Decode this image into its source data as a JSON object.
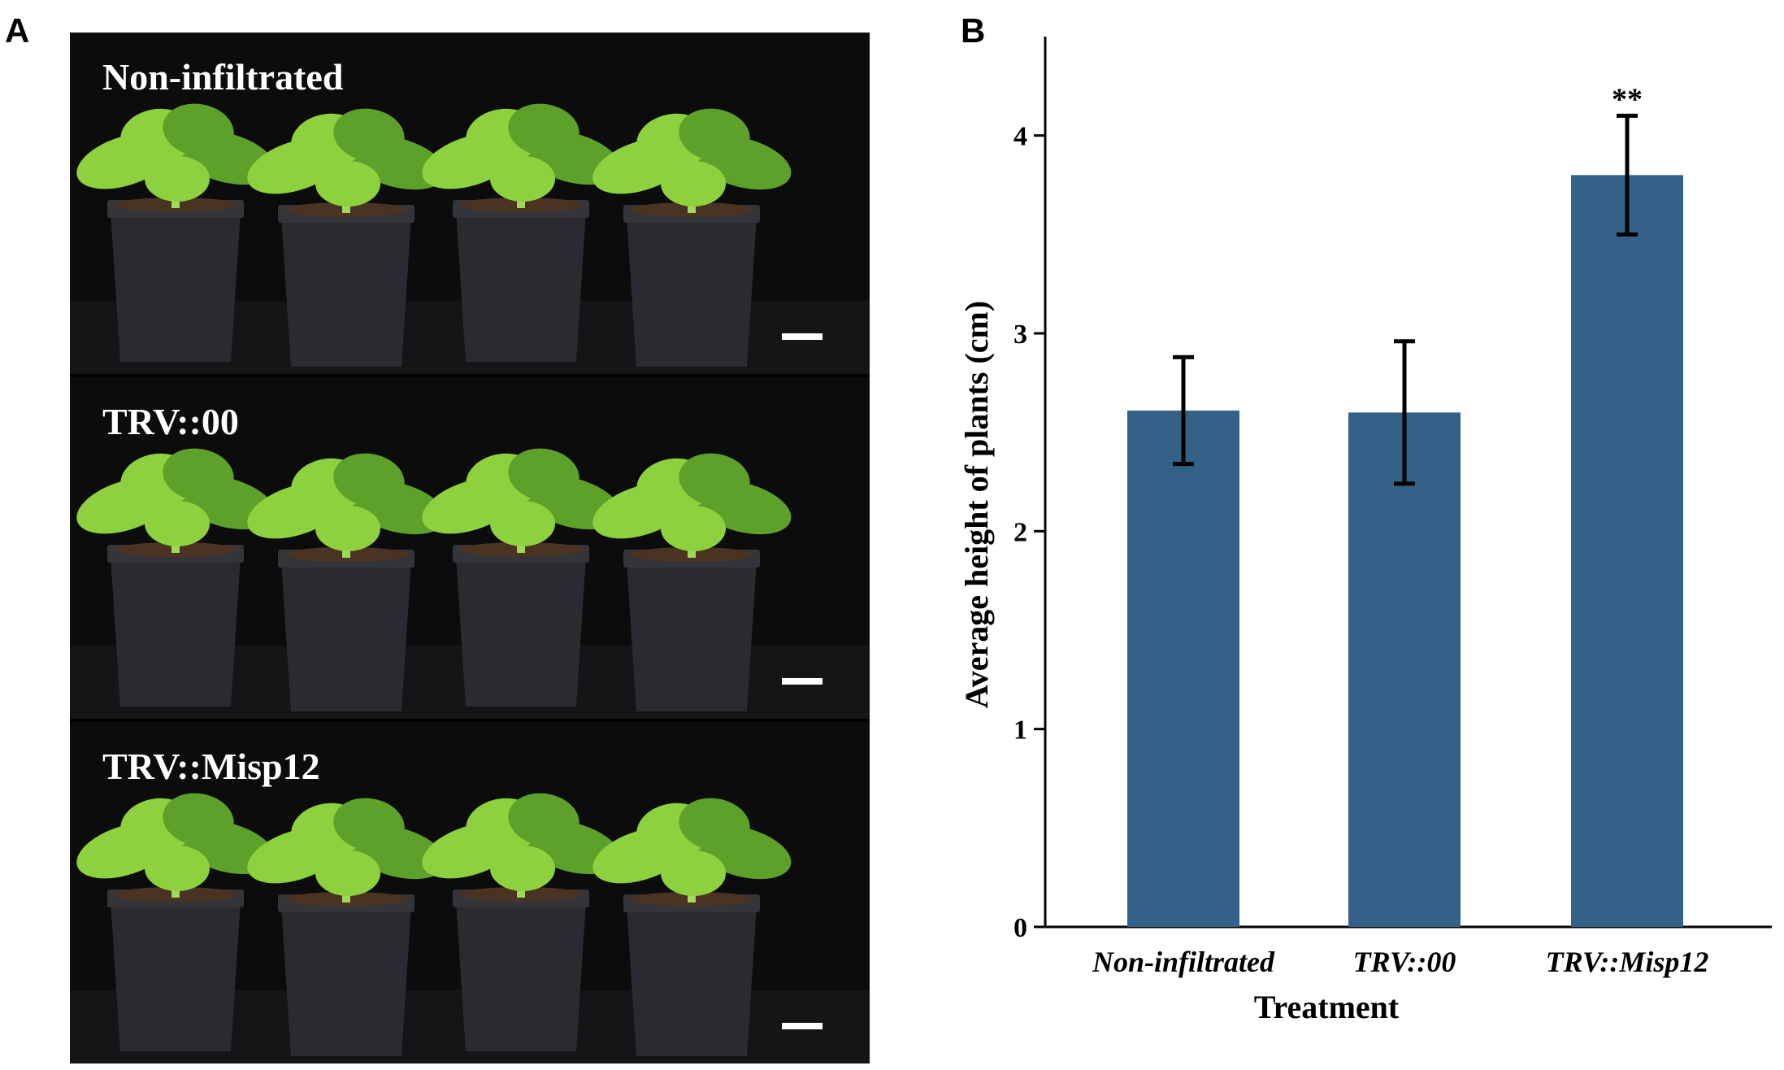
{
  "panels": {
    "a_letter": "A",
    "b_letter": "B"
  },
  "photos": [
    {
      "label": "Non-infiltrated"
    },
    {
      "label": "TRV::00"
    },
    {
      "label": "TRV::Misp12"
    }
  ],
  "colors": {
    "bar": "#346188",
    "leaf": "#8ed13f",
    "leaf_dark": "#5ea12a",
    "pot": "#2a2b30",
    "soil": "#4a3323",
    "background": "#0c0c0d"
  },
  "chart_data": {
    "type": "bar",
    "categories": [
      "Non-infiltrated",
      "TRV::00",
      "TRV::Misp12"
    ],
    "values": [
      2.61,
      2.6,
      3.8
    ],
    "errors": [
      0.27,
      0.36,
      0.3
    ],
    "annotations": [
      "",
      "",
      "**"
    ],
    "xlabel": "Treatment",
    "ylabel": "Average height of plants (cm)",
    "ylim": [
      0,
      4.5
    ],
    "yticks": [
      0,
      1,
      2,
      3,
      4
    ],
    "grid": false
  }
}
